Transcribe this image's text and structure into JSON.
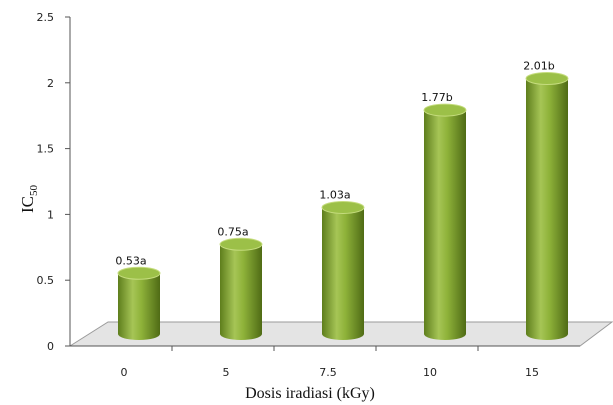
{
  "chart_data": {
    "type": "bar",
    "categories": [
      "0",
      "5",
      "7.5",
      "10",
      "15"
    ],
    "values": [
      0.53,
      0.75,
      1.03,
      1.77,
      2.01
    ],
    "data_labels": [
      "0.53a",
      "0.75a",
      "1.03a",
      "1.77b",
      "2.01b"
    ],
    "xlabel": "Dosis iradiasi (kGy)",
    "ylabel": "IC50",
    "ylabel_main": "IC",
    "ylabel_sub": "50",
    "ylim": [
      0,
      2.5
    ],
    "yticks": [
      "0",
      "0.5",
      "1",
      "1.5",
      "2",
      "2.5"
    ],
    "grid": false,
    "bar_style": "3d-cylinder",
    "colors": {
      "bar": "#8fb33a",
      "bar_dark": "#5e7e1c",
      "bar_light": "#c5dc7e",
      "floor": "#e4e4e4"
    }
  }
}
